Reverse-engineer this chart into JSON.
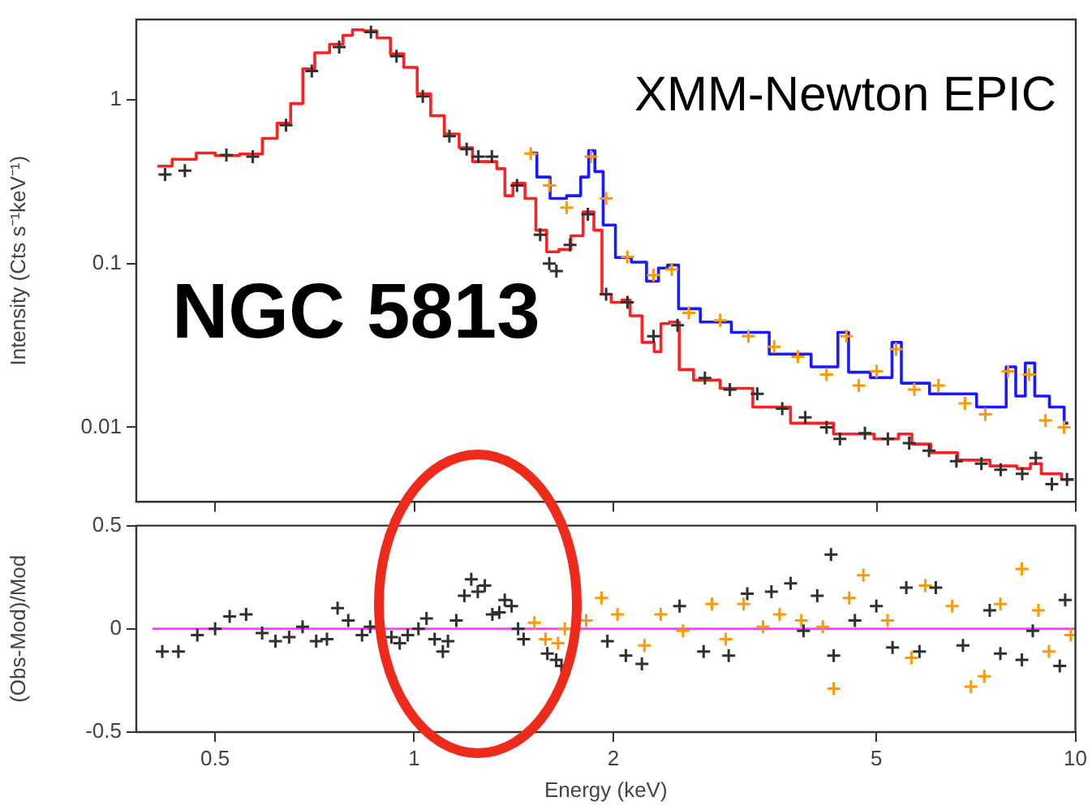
{
  "chart_data": [
    {
      "type": "scatter",
      "ylabel": "Intensity (Cts s⁻¹keV⁻¹)",
      "annotations": [
        "XMM-Newton EPIC",
        "NGC 5813"
      ],
      "log": "xy",
      "tick_labels": "y",
      "xlim": [
        0.38,
        10
      ],
      "xticks": [
        0.5,
        1,
        2,
        5,
        10
      ],
      "ylim": [
        0.0035,
        3.1
      ],
      "yticks": [
        0.01,
        0.1,
        1
      ],
      "series": [
        {
          "type": "scatter",
          "marker": "cross",
          "color": "#303030",
          "x": [
            0.42,
            0.45,
            0.52,
            0.57,
            0.64,
            0.7,
            0.77,
            0.86,
            0.94,
            1.03,
            1.13,
            1.2,
            1.25,
            1.31,
            1.43,
            1.55,
            1.6,
            1.64,
            1.72,
            1.83,
            1.95,
            2.1,
            2.3,
            2.5,
            2.75,
            3.0,
            3.3,
            3.6,
            3.9,
            4.2,
            4.4,
            4.8,
            5.2,
            5.6,
            6.0,
            6.6,
            7.2,
            7.7,
            8.3,
            8.7,
            9.2,
            9.7
          ],
          "values": [
            0.35,
            0.37,
            0.46,
            0.45,
            0.7,
            1.5,
            2.1,
            2.6,
            1.85,
            1.05,
            0.6,
            0.5,
            0.45,
            0.45,
            0.3,
            0.15,
            0.1,
            0.09,
            0.13,
            0.2,
            0.065,
            0.058,
            0.036,
            0.042,
            0.02,
            0.017,
            0.016,
            0.013,
            0.0115,
            0.01,
            0.0085,
            0.0092,
            0.0085,
            0.008,
            0.0072,
            0.0062,
            0.006,
            0.0055,
            0.0052,
            0.0065,
            0.0045,
            0.0048
          ]
        },
        {
          "type": "step",
          "marker": "none",
          "color": "#ff2020",
          "x": [
            0.409,
            0.453,
            0.484,
            0.517,
            0.573,
            0.606,
            0.635,
            0.666,
            0.691,
            0.724,
            0.766,
            0.795,
            0.818,
            0.858,
            0.899,
            0.942,
            0.987,
            1.034,
            1.084,
            1.137,
            1.202,
            1.248,
            1.308,
            1.358,
            1.384,
            1.436,
            1.505,
            1.549,
            1.623,
            1.685,
            1.766,
            1.834,
            1.904,
            1.94,
            2.03,
            2.09,
            2.15,
            2.27,
            2.34,
            2.38,
            2.48,
            2.55,
            2.74,
            3.07,
            3.44,
            3.99,
            4.64,
            5.29,
            5.5,
            5.81,
            6.27,
            7.01,
            7.85,
            8.46,
            8.62,
            9.12,
            9.93
          ],
          "values": [
            0.394,
            0.434,
            0.474,
            0.457,
            0.467,
            0.582,
            0.72,
            0.95,
            1.55,
            1.94,
            2.19,
            2.48,
            2.68,
            2.64,
            2.39,
            1.91,
            1.58,
            1.09,
            0.8,
            0.62,
            0.51,
            0.42,
            0.42,
            0.38,
            0.26,
            0.31,
            0.25,
            0.16,
            0.118,
            0.122,
            0.148,
            0.207,
            0.16,
            0.065,
            0.058,
            0.06,
            0.048,
            0.033,
            0.029,
            0.043,
            0.044,
            0.0225,
            0.0194,
            0.0173,
            0.0133,
            0.0106,
            0.0091,
            0.0085,
            0.0091,
            0.0079,
            0.007,
            0.0063,
            0.0058,
            0.0056,
            0.006,
            0.0052,
            0.0048
          ]
        },
        {
          "type": "scatter",
          "marker": "cross",
          "color": "#ff9900",
          "x": [
            1.5,
            1.6,
            1.7,
            1.85,
            1.95,
            2.1,
            2.3,
            2.45,
            2.6,
            2.9,
            3.2,
            3.5,
            3.8,
            4.2,
            4.5,
            4.7,
            5.0,
            5.35,
            5.7,
            6.2,
            6.8,
            7.3,
            7.9,
            8.5,
            9.0,
            9.6
          ],
          "values": [
            0.47,
            0.3,
            0.22,
            0.45,
            0.25,
            0.11,
            0.085,
            0.092,
            0.05,
            0.045,
            0.036,
            0.031,
            0.027,
            0.021,
            0.036,
            0.018,
            0.022,
            0.03,
            0.017,
            0.018,
            0.014,
            0.012,
            0.022,
            0.021,
            0.011,
            0.01
          ]
        },
        {
          "type": "step",
          "marker": "none",
          "color": "#1a1aff",
          "x": [
            1.505,
            1.56,
            1.65,
            1.75,
            1.82,
            1.85,
            1.9,
            1.96,
            2.07,
            2.19,
            2.3,
            2.38,
            2.45,
            2.57,
            2.85,
            3.19,
            3.71,
            4.27,
            4.47,
            4.6,
            5.2,
            5.35,
            5.55,
            6.51,
            7.7,
            8.0,
            8.23,
            8.55,
            8.79,
            9.47,
            9.74
          ],
          "values": [
            0.474,
            0.338,
            0.25,
            0.26,
            0.338,
            0.49,
            0.365,
            0.172,
            0.109,
            0.102,
            0.078,
            0.094,
            0.098,
            0.053,
            0.044,
            0.038,
            0.028,
            0.0234,
            0.038,
            0.0217,
            0.0201,
            0.033,
            0.0186,
            0.016,
            0.0133,
            0.0234,
            0.0155,
            0.0247,
            0.0155,
            0.0133,
            0.0106
          ]
        }
      ]
    },
    {
      "type": "scatter",
      "xlabel": "Energy (keV)",
      "ylabel": "(Obs-Mod)/Mod",
      "log": "x",
      "marker": "cross",
      "xlim": [
        0.38,
        10
      ],
      "xticks": [
        0.5,
        1,
        2,
        5,
        10
      ],
      "ylim": [
        -0.5,
        0.5
      ],
      "yticks": [
        -0.5,
        0,
        0.5
      ],
      "ref_lines": [
        {
          "axis": "y",
          "value": 0,
          "color": "#ff40ff"
        }
      ],
      "series": [
        {
          "type": "scatter",
          "color": "#303030",
          "x": [
            0.416,
            0.44,
            0.47,
            0.5,
            0.526,
            0.557,
            0.589,
            0.617,
            0.647,
            0.678,
            0.711,
            0.738,
            0.766,
            0.795,
            0.834,
            0.858,
            0.882,
            0.924,
            0.951,
            0.978,
            1.015,
            1.044,
            1.074,
            1.105,
            1.125,
            1.158,
            1.191,
            1.22,
            1.248,
            1.279,
            1.313,
            1.345,
            1.371,
            1.404,
            1.436,
            1.464,
            1.59,
            1.64,
            1.67,
            1.96,
            2.09,
            2.21,
            2.52,
            2.74,
            2.99,
            3.19,
            3.47,
            3.71,
            3.88,
            4.07,
            4.27,
            4.31,
            4.64,
            5.0,
            5.29,
            5.55,
            5.81,
            6.15,
            6.76,
            7.42,
            7.7,
            8.3,
            8.62,
            9.47,
            9.65
          ],
          "values": [
            -0.11,
            -0.11,
            -0.03,
            0.0,
            0.06,
            0.07,
            -0.02,
            -0.06,
            -0.04,
            0.01,
            -0.06,
            -0.05,
            0.1,
            0.04,
            -0.03,
            0.01,
            0.01,
            -0.04,
            -0.07,
            -0.03,
            0.0,
            0.05,
            -0.05,
            -0.11,
            -0.06,
            0.04,
            0.16,
            0.24,
            0.18,
            0.21,
            0.07,
            0.08,
            0.14,
            0.11,
            0.0,
            -0.05,
            -0.12,
            -0.15,
            -0.18,
            -0.06,
            -0.13,
            -0.17,
            0.11,
            -0.11,
            -0.13,
            0.17,
            0.18,
            0.22,
            -0.01,
            0.16,
            0.36,
            -0.13,
            0.04,
            0.11,
            -0.09,
            0.2,
            -0.11,
            0.2,
            -0.08,
            0.09,
            -0.12,
            -0.15,
            -0.01,
            -0.18,
            0.14
          ]
        },
        {
          "type": "scatter",
          "color": "#ff9900",
          "x": [
            1.52,
            1.58,
            1.65,
            1.69,
            1.82,
            1.92,
            2.03,
            2.23,
            2.36,
            2.55,
            2.82,
            2.96,
            3.15,
            3.37,
            3.57,
            3.85,
            4.15,
            4.31,
            4.55,
            4.78,
            5.2,
            5.65,
            5.93,
            6.51,
            6.95,
            7.28,
            7.7,
            8.3,
            8.79,
            9.12,
            9.84
          ],
          "values": [
            0.03,
            -0.05,
            -0.07,
            0.0,
            0.04,
            0.15,
            0.07,
            -0.08,
            0.07,
            -0.01,
            0.12,
            -0.05,
            0.12,
            0.01,
            0.07,
            0.04,
            0.01,
            -0.29,
            0.15,
            0.26,
            0.04,
            -0.14,
            0.21,
            0.11,
            -0.28,
            -0.23,
            0.12,
            0.29,
            0.09,
            -0.11,
            -0.03
          ]
        }
      ]
    }
  ]
}
